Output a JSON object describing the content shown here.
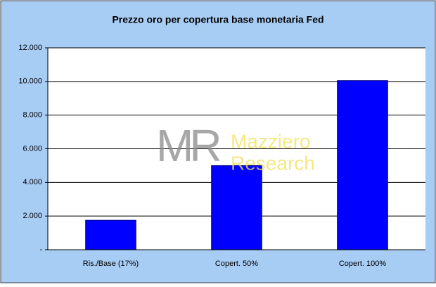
{
  "chart_data": {
    "type": "bar",
    "title": "Prezzo oro per copertura base monetaria Fed",
    "categories": [
      "Ris./Base (17%)",
      "Copert. 50%",
      "Copert. 100%"
    ],
    "values": [
      1750,
      5000,
      10050
    ],
    "color": "#0000ff",
    "ylim": [
      0,
      12000
    ],
    "yticks": [
      {
        "value": 0,
        "label": "-"
      },
      {
        "value": 2000,
        "label": "2.000"
      },
      {
        "value": 4000,
        "label": "4.000"
      },
      {
        "value": 6000,
        "label": "6.000"
      },
      {
        "value": 8000,
        "label": "8.000"
      },
      {
        "value": 10000,
        "label": "10.000"
      },
      {
        "value": 12000,
        "label": "12.000"
      }
    ],
    "grid": true,
    "watermark": {
      "logo": "MR",
      "line1": "Mazziero",
      "line2": "Research"
    }
  }
}
